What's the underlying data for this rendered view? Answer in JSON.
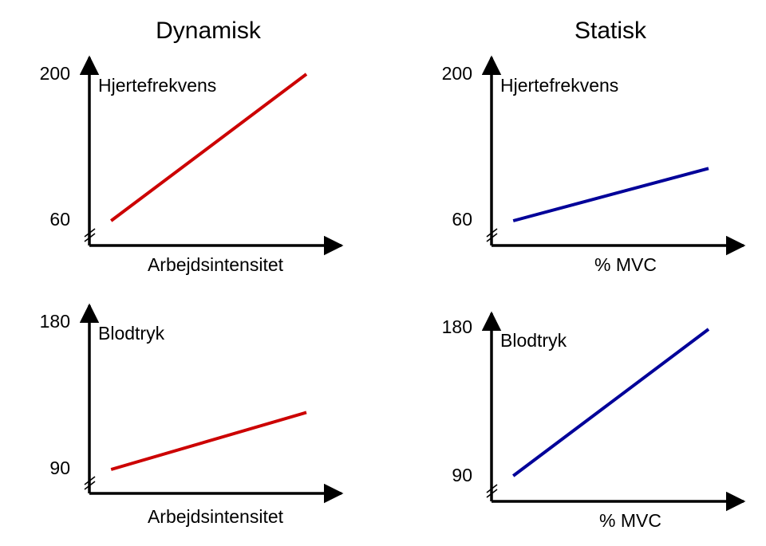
{
  "columns": [
    {
      "title": "Dynamisk"
    },
    {
      "title": "Statisk"
    }
  ],
  "colors": {
    "dynamic_line": "#cc0000",
    "static_line": "#000099",
    "axis": "#000000"
  },
  "chart_data": [
    {
      "type": "line",
      "ylabel": "Hjertefrekvens",
      "xlabel": "Arbejdsintensitet",
      "y_ticks": [
        "200",
        "60"
      ],
      "ylim": [
        60,
        200
      ],
      "axis_break": true,
      "series": [
        {
          "color": "#cc0000",
          "x": [
            0.1,
            1.0
          ],
          "y": [
            60,
            200
          ]
        }
      ]
    },
    {
      "type": "line",
      "ylabel": "Hjertefrekvens",
      "xlabel": "% MVC",
      "y_ticks": [
        "200",
        "60"
      ],
      "ylim": [
        60,
        200
      ],
      "axis_break": true,
      "series": [
        {
          "color": "#000099",
          "x": [
            0.1,
            1.0
          ],
          "y": [
            60,
            110
          ]
        }
      ]
    },
    {
      "type": "line",
      "ylabel": "Blodtryk",
      "xlabel": "Arbejdsintensitet",
      "y_ticks": [
        "180",
        "90"
      ],
      "ylim": [
        90,
        180
      ],
      "axis_break": true,
      "series": [
        {
          "color": "#cc0000",
          "x": [
            0.1,
            1.0
          ],
          "y": [
            90,
            125
          ]
        }
      ]
    },
    {
      "type": "line",
      "ylabel": "Blodtryk",
      "xlabel": "% MVC",
      "y_ticks": [
        "180",
        "90"
      ],
      "ylim": [
        90,
        180
      ],
      "axis_break": true,
      "series": [
        {
          "color": "#000099",
          "x": [
            0.1,
            1.0
          ],
          "y": [
            90,
            180
          ]
        }
      ]
    }
  ]
}
